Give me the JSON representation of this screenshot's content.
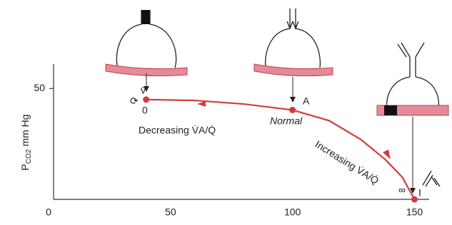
{
  "chart_data": {
    "type": "line",
    "y_label": {
      "main": "P",
      "sub": "CO2",
      "unit": " mm Hg"
    },
    "xlim": [
      0,
      156
    ],
    "ylim": [
      0,
      61
    ],
    "xticks": [
      0,
      50,
      100,
      150
    ],
    "yticks": [
      50
    ],
    "series": [
      {
        "color": "#d33c3c",
        "x": [
          40,
          60,
          80,
          100,
          115,
          128,
          138,
          145,
          150
        ],
        "values": [
          45,
          44.6,
          43,
          40.3,
          35.5,
          27,
          18,
          10,
          0
        ]
      }
    ],
    "points": {
      "color": "#d33c3c",
      "x": [
        40,
        100,
        150
      ],
      "values": [
        45,
        40.3,
        0
      ]
    },
    "annotations": [
      "v̄",
      "0",
      "A",
      "Normal",
      "Decreasing V̇A/Q̇",
      "Increasing V̇A/Q̇",
      "∞",
      "I"
    ]
  }
}
